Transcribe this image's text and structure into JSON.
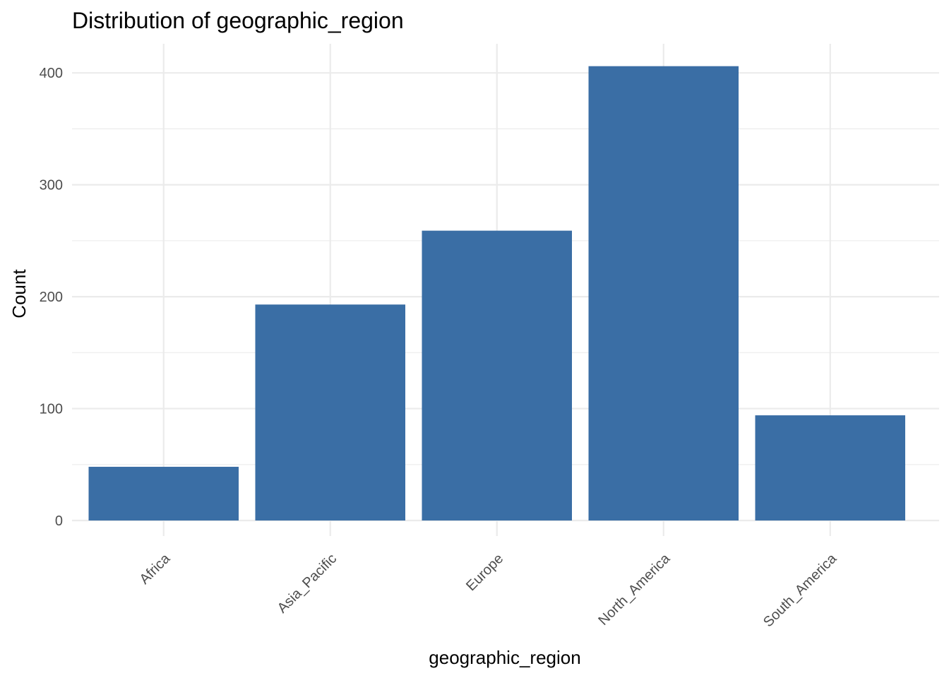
{
  "chart_data": {
    "type": "bar",
    "title": "Distribution of geographic_region",
    "xlabel": "geographic_region",
    "ylabel": "Count",
    "categories": [
      "Africa",
      "Asia_Pacific",
      "Europe",
      "North_America",
      "South_America"
    ],
    "values": [
      48,
      193,
      259,
      406,
      94
    ],
    "ylim": [
      0,
      420
    ],
    "yticks": [
      0,
      100,
      200,
      300,
      400
    ],
    "ytick_labels": [
      "0",
      "100",
      "200",
      "300",
      "400"
    ],
    "grid": true,
    "legend": "none",
    "bar_color": "#3A6EA5",
    "grid_color": "#EBEBEB",
    "tick_label_color": "#4D4D4D"
  }
}
